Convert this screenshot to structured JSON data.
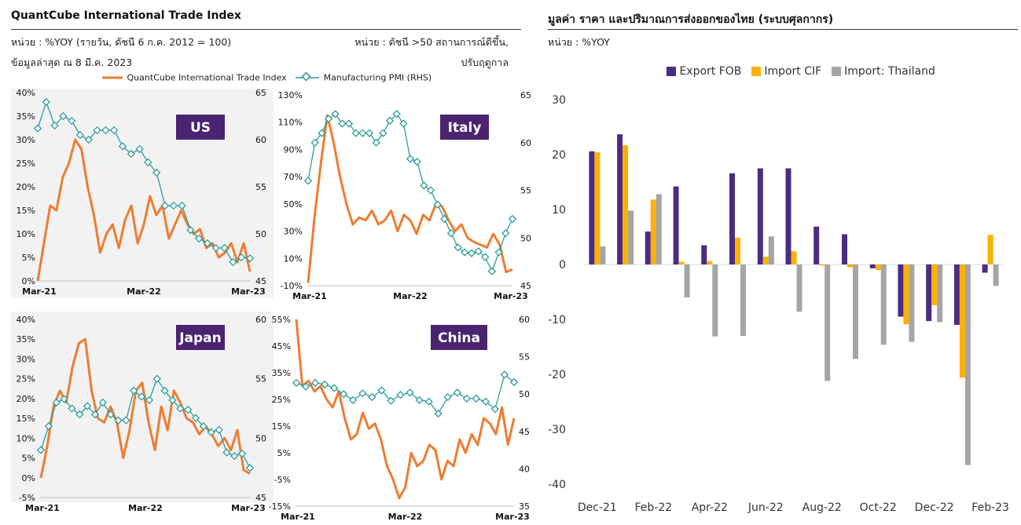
{
  "left": {
    "title": "QuantCube International Trade Index",
    "unit_left_1": "หน่วย : %YOY (รายวัน, ดัชนี 6 ก.ค. 2012 = 100)",
    "unit_left_2": "ข้อมูลล่าสุด ณ 8 มี.ค. 2023",
    "unit_right_1": "หน่วย : ดัชนี >50 สถานการณ์ดีขึ้น,",
    "unit_right_2": "ปรับฤดูกาล",
    "legend": [
      {
        "label": "QuantCube International Trade Index",
        "color": "#ED7D31"
      },
      {
        "label": "Manufacturing PMI (RHS)",
        "color": "#2E9C9C"
      }
    ]
  },
  "right": {
    "title": "มูลค่า ราคา และปริมาณการส่งออกของไทย (ระบบศุลกากร)",
    "unit": "หน่วย : %YOY"
  },
  "colors": {
    "trade_index": "#ED7D31",
    "pmi": "#2E9C9C",
    "label_bg": "#4A2470",
    "export": "#4B2C82",
    "import_cif": "#FFB000",
    "import_th": "#A5A5A5"
  },
  "chart_data": [
    {
      "type": "line",
      "label": "US",
      "x_ticks": [
        "Mar-21",
        "Mar-22",
        "Mar-23"
      ],
      "y_left_ticks": [
        "40%",
        "35%",
        "30%",
        "25%",
        "20%",
        "15%",
        "10%",
        "5%",
        "0%"
      ],
      "y_right_ticks": [
        "65",
        "60",
        "55",
        "50",
        "45"
      ],
      "ylim_left": [
        0,
        40
      ],
      "ylim_right": [
        45,
        65
      ],
      "trade_index": [
        0,
        8,
        16,
        15,
        22,
        25,
        30,
        28,
        20,
        14,
        6,
        10,
        12,
        7,
        13,
        16,
        8,
        12,
        18,
        14,
        16,
        9,
        12,
        15,
        12,
        10,
        11,
        7,
        8,
        5,
        6,
        8,
        4,
        8,
        2
      ],
      "pmi": [
        61.2,
        64,
        61.5,
        62.5,
        62,
        60.5,
        60,
        61,
        61,
        61,
        59.3,
        58.5,
        59,
        57.6,
        56.5,
        53,
        53,
        53,
        50.4,
        49.5,
        49,
        48.5,
        48.5,
        47,
        47.5,
        47.4
      ],
      "grey_bg": true
    },
    {
      "type": "line",
      "label": "Italy",
      "x_ticks": [
        "Mar-21",
        "Mar-22",
        "Mar-23"
      ],
      "y_left_ticks": [
        "130%",
        "110%",
        "90%",
        "70%",
        "50%",
        "30%",
        "10%",
        "-10%"
      ],
      "y_right_ticks": [
        "65",
        "60",
        "55",
        "50",
        "45"
      ],
      "ylim_left": [
        -10,
        130
      ],
      "ylim_right": [
        45,
        65
      ],
      "trade_index": [
        -8,
        40,
        80,
        115,
        95,
        70,
        50,
        35,
        40,
        38,
        45,
        35,
        38,
        45,
        30,
        42,
        38,
        28,
        42,
        38,
        50,
        48,
        38,
        30,
        35,
        25,
        22,
        20,
        18,
        28,
        20,
        0,
        2
      ],
      "pmi": [
        56,
        60,
        61,
        62.5,
        63,
        62,
        62,
        61,
        61,
        61,
        60,
        61,
        62.3,
        63,
        62,
        58.3,
        58,
        55.5,
        55,
        53.5,
        52,
        50.5,
        49,
        48.5,
        48.4,
        48.6,
        48,
        46.5,
        48.5,
        50.5,
        52
      ],
      "grey_bg": false
    },
    {
      "type": "line",
      "label": "Japan",
      "x_ticks": [
        "Mar-21",
        "Mar-22",
        "Mar-23"
      ],
      "y_left_ticks": [
        "40%",
        "35%",
        "30%",
        "25%",
        "20%",
        "15%",
        "10%",
        "5%",
        "0%",
        "-5%"
      ],
      "y_right_ticks": [
        "60",
        "55",
        "50",
        "45"
      ],
      "ylim_left": [
        -5,
        40
      ],
      "ylim_right": [
        45,
        60
      ],
      "trade_index": [
        0,
        8,
        18,
        22,
        19,
        28,
        34,
        35,
        22,
        15,
        14,
        18,
        14,
        5,
        12,
        22,
        24,
        14,
        7,
        18,
        12,
        22,
        19,
        15,
        14,
        11,
        13,
        11,
        8,
        10,
        7,
        12,
        2,
        1
      ],
      "pmi": [
        49,
        51,
        53,
        53.3,
        52.5,
        52,
        52.7,
        52,
        53,
        52,
        51.5,
        51.5,
        54,
        53.5,
        53.2,
        55,
        54,
        53.2,
        52.5,
        52.4,
        51.7,
        51,
        50.5,
        50.7,
        48.8,
        48.5,
        48.7,
        47.5
      ],
      "grey_bg": true
    },
    {
      "type": "line",
      "label": "China",
      "x_ticks": [
        "Mar-21",
        "Mar-22",
        "Mar-23"
      ],
      "y_left_ticks": [
        "55%",
        "45%",
        "35%",
        "25%",
        "15%",
        "5%",
        "-5%",
        "-15%"
      ],
      "y_right_ticks": [
        "60",
        "55",
        "50",
        "45",
        "40",
        "35"
      ],
      "ylim_left": [
        -15,
        55
      ],
      "ylim_right": [
        35,
        60
      ],
      "trade_index": [
        55,
        30,
        32,
        28,
        30,
        25,
        22,
        28,
        18,
        10,
        12,
        20,
        14,
        16,
        10,
        0,
        -5,
        -12,
        -8,
        5,
        0,
        2,
        8,
        6,
        -5,
        2,
        0,
        10,
        5,
        12,
        8,
        18,
        16,
        12,
        22,
        8,
        18
      ],
      "pmi": [
        51.5,
        51,
        51.5,
        51.3,
        50.8,
        50,
        49.2,
        50.1,
        49.6,
        50.5,
        49.1,
        49.9,
        50.2,
        49.2,
        49,
        47.4,
        49.6,
        50.2,
        49.4,
        49.4,
        49,
        48,
        52.6,
        51.6
      ],
      "grey_bg": false
    },
    {
      "type": "bar",
      "categories": [
        "Dec-21",
        "Jan-22",
        "Feb-22",
        "Mar-22",
        "Apr-22",
        "May-22",
        "Jun-22",
        "Jul-22",
        "Aug-22",
        "Sep-22",
        "Oct-22",
        "Nov-22",
        "Dec-22",
        "Jan-23",
        "Feb-23"
      ],
      "x_tick_labels": [
        "Dec-21",
        "Feb-22",
        "Apr-22",
        "Jun-22",
        "Aug-22",
        "Oct-22",
        "Dec-22",
        "Feb-23"
      ],
      "y_ticks": [
        "30",
        "20",
        "10",
        "0",
        "-10",
        "-20",
        "-30",
        "-40"
      ],
      "ylim": [
        -40,
        30
      ],
      "legend_position": "top",
      "series": [
        {
          "name": "Export FOB",
          "values": [
            20.6,
            23.7,
            6.0,
            14.2,
            3.5,
            16.6,
            17.5,
            17.5,
            6.9,
            5.5,
            -0.7,
            -9.5,
            -10.3,
            -11.0,
            -1.5
          ]
        },
        {
          "name": "Import CIF",
          "values": [
            20.4,
            21.7,
            11.8,
            0.5,
            0.6,
            4.9,
            1.4,
            2.4,
            -0.2,
            -0.5,
            -1.0,
            -10.9,
            -7.4,
            -20.6,
            5.4
          ]
        },
        {
          "name": "Import: Thailand",
          "values": [
            3.3,
            9.8,
            12.8,
            -6.0,
            -13.1,
            -13.0,
            5.1,
            -8.6,
            -21.2,
            -17.2,
            -14.6,
            -14.1,
            -10.5,
            -36.5,
            -3.9
          ]
        }
      ]
    }
  ]
}
